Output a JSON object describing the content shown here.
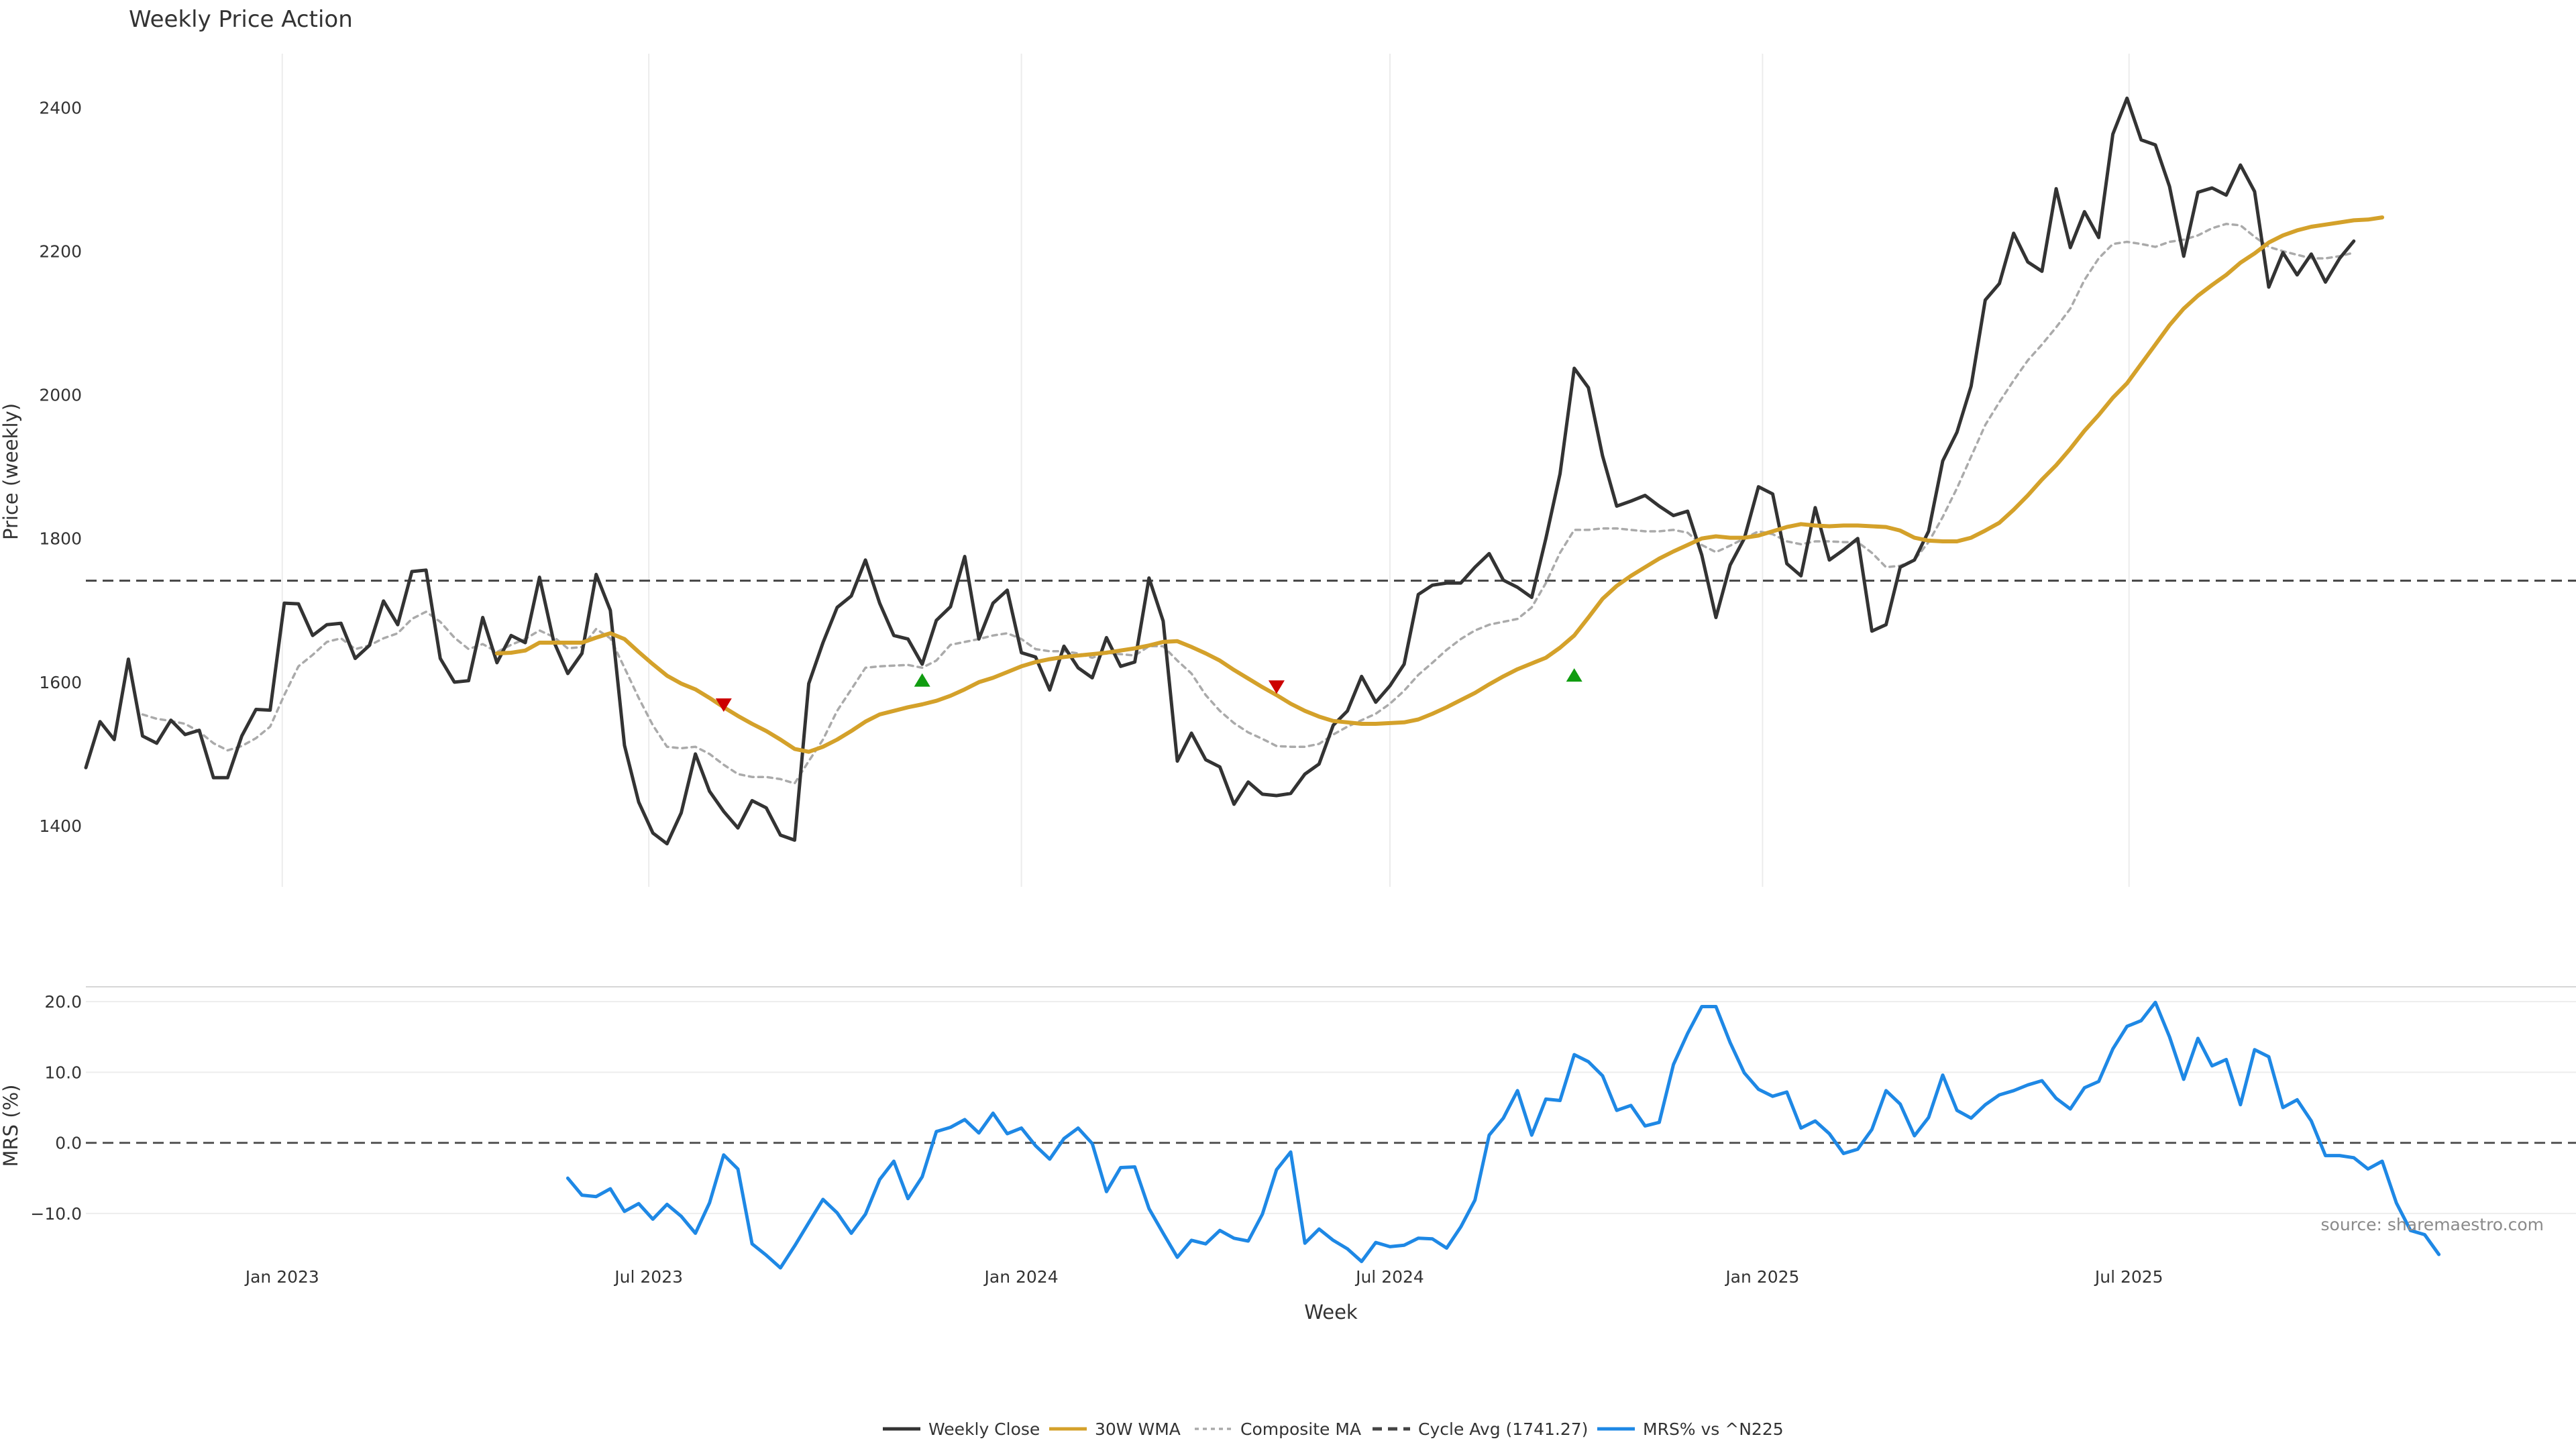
{
  "chart_data": [
    {
      "type": "line",
      "title": "Weekly Price Action",
      "ylabel": "Price (weekly)",
      "xlabel": "Week",
      "ylim": [
        1315,
        2475
      ],
      "yticks": [
        "1400",
        "1600",
        "1800",
        "2000",
        "2200",
        "2400"
      ],
      "x_ticks": [
        "Jan 2023",
        "Jul 2023",
        "Jan 2024",
        "Jul 2024",
        "Jan 2025",
        "Jul 2025"
      ],
      "x_start": "2022-09-26",
      "x_interval_days": 7,
      "grid": "vertical",
      "reference_line": {
        "name": "Cycle Avg (1741.27)",
        "value": 1741.27
      },
      "series": [
        {
          "name": "Weekly Close",
          "color": "#333333",
          "values": [
            1481,
            1545,
            1520,
            1632,
            1525,
            1515,
            1547,
            1527,
            1533,
            1467,
            1467,
            1525,
            1562,
            1561,
            1710,
            1709,
            1665,
            1680,
            1682,
            1633,
            1651,
            1713,
            1680,
            1754,
            1756,
            1633,
            1600,
            1602,
            1690,
            1627,
            1665,
            1655,
            1746,
            1657,
            1612,
            1640,
            1750,
            1700,
            1512,
            1433,
            1390,
            1375,
            1418,
            1500,
            1448,
            1420,
            1397,
            1435,
            1425,
            1387,
            1380,
            1598,
            1655,
            1704,
            1720,
            1770,
            1710,
            1665,
            1660,
            1625,
            1686,
            1705,
            1775,
            1660,
            1710,
            1728,
            1641,
            1635,
            1589,
            1650,
            1620,
            1606,
            1662,
            1622,
            1628,
            1745,
            1685,
            1490,
            1529,
            1492,
            1482,
            1430,
            1461,
            1444,
            1442,
            1445,
            1472,
            1486,
            1540,
            1560,
            1608,
            1572,
            1595,
            1625,
            1722,
            1735,
            1738,
            1738,
            1760,
            1779,
            1742,
            1732,
            1718,
            1800,
            1890,
            2037,
            2010,
            1915,
            1845,
            1852,
            1860,
            1845,
            1832,
            1838,
            1777,
            1690,
            1763,
            1800,
            1872,
            1862,
            1765,
            1748,
            1843,
            1770,
            1784,
            1800,
            1671,
            1680,
            1760,
            1770,
            1810,
            1908,
            1948,
            2012,
            2132,
            2155,
            2225,
            2185,
            2172,
            2287,
            2205,
            2255,
            2219,
            2363,
            2413,
            2355,
            2348,
            2290,
            2193,
            2282,
            2288,
            2278,
            2320,
            2283,
            2150,
            2198,
            2167,
            2196,
            2157,
            2190,
            2214
          ]
        },
        {
          "name": "30W WMA",
          "color": "#D4A12A",
          "values": [
            null,
            null,
            null,
            null,
            null,
            null,
            null,
            null,
            null,
            null,
            null,
            null,
            null,
            null,
            null,
            null,
            null,
            null,
            null,
            null,
            null,
            null,
            null,
            null,
            null,
            null,
            null,
            null,
            null,
            1640,
            1641,
            1644,
            1655,
            1655,
            1655,
            1655,
            1662,
            1668,
            1660,
            1642,
            1625,
            1609,
            1598,
            1590,
            1578,
            1565,
            1553,
            1542,
            1532,
            1520,
            1507,
            1503,
            1510,
            1520,
            1532,
            1545,
            1555,
            1560,
            1565,
            1569,
            1574,
            1581,
            1590,
            1600,
            1606,
            1614,
            1622,
            1628,
            1632,
            1635,
            1637,
            1639,
            1641,
            1644,
            1647,
            1651,
            1656,
            1657,
            1649,
            1640,
            1630,
            1617,
            1605,
            1593,
            1582,
            1570,
            1560,
            1552,
            1546,
            1544,
            1542,
            1542,
            1543,
            1544,
            1548,
            1556,
            1565,
            1575,
            1585,
            1597,
            1608,
            1618,
            1626,
            1634,
            1648,
            1665,
            1690,
            1716,
            1734,
            1748,
            1760,
            1772,
            1782,
            1791,
            1800,
            1803,
            1801,
            1801,
            1804,
            1810,
            1816,
            1820,
            1818,
            1817,
            1818,
            1818,
            1817,
            1816,
            1811,
            1801,
            1797,
            1796,
            1796,
            1801,
            1811,
            1822,
            1840,
            1860,
            1882,
            1902,
            1925,
            1950,
            1972,
            1996,
            2016,
            2043,
            2070,
            2097,
            2120,
            2138,
            2153,
            2167,
            2184,
            2197,
            2212,
            2222,
            2229,
            2234,
            2237,
            2240,
            2243,
            2244,
            2247
          ]
        },
        {
          "name": "Composite MA",
          "color": "#AAAAAA",
          "values": [
            null,
            null,
            null,
            null,
            1555,
            1549,
            1546,
            1542,
            1531,
            1515,
            1505,
            1511,
            1522,
            1538,
            1582,
            1622,
            1638,
            1656,
            1661,
            1646,
            1651,
            1661,
            1668,
            1688,
            1698,
            1684,
            1662,
            1646,
            1653,
            1642,
            1652,
            1660,
            1672,
            1663,
            1647,
            1649,
            1674,
            1661,
            1620,
            1578,
            1540,
            1510,
            1508,
            1510,
            1500,
            1485,
            1472,
            1468,
            1468,
            1465,
            1459,
            1490,
            1520,
            1560,
            1590,
            1620,
            1622,
            1623,
            1624,
            1620,
            1630,
            1652,
            1656,
            1660,
            1665,
            1668,
            1660,
            1646,
            1643,
            1643,
            1640,
            1634,
            1641,
            1639,
            1637,
            1650,
            1650,
            1630,
            1612,
            1582,
            1560,
            1543,
            1530,
            1521,
            1511,
            1510,
            1510,
            1514,
            1527,
            1538,
            1547,
            1556,
            1570,
            1588,
            1610,
            1627,
            1645,
            1660,
            1672,
            1680,
            1684,
            1688,
            1704,
            1738,
            1780,
            1812,
            1812,
            1814,
            1814,
            1812,
            1810,
            1810,
            1812,
            1808,
            1791,
            1781,
            1790,
            1800,
            1810,
            1806,
            1796,
            1792,
            1796,
            1796,
            1795,
            1795,
            1780,
            1760,
            1762,
            1770,
            1795,
            1830,
            1870,
            1914,
            1958,
            1990,
            2020,
            2048,
            2070,
            2094,
            2120,
            2160,
            2190,
            2210,
            2213,
            2210,
            2206,
            2213,
            2216,
            2222,
            2232,
            2238,
            2236,
            2220,
            2206,
            2200,
            2195,
            2190,
            2190,
            2193,
            2198
          ]
        }
      ],
      "signals": [
        {
          "type": "sell",
          "x": "2023-08-07",
          "y": 1568,
          "color": "#CC0000"
        },
        {
          "type": "buy",
          "x": "2023-11-13",
          "y": 1603,
          "color": "#109C10"
        },
        {
          "type": "sell",
          "x": "2024-05-06",
          "y": 1593,
          "color": "#CC0000"
        },
        {
          "type": "buy",
          "x": "2024-09-30",
          "y": 1610,
          "color": "#109C10"
        }
      ]
    },
    {
      "type": "line",
      "ylabel": "MRS (%)",
      "ylim": [
        -17.7,
        22.1
      ],
      "yticks": [
        "20.0",
        "10.0",
        "0.0",
        "−10.0"
      ],
      "reference_line": {
        "value": 0
      },
      "grid": "horizontal",
      "series": [
        {
          "name": "MRS% vs ^N225",
          "color": "#1E88E5",
          "values": [
            null,
            null,
            null,
            null,
            null,
            null,
            null,
            null,
            null,
            null,
            null,
            null,
            null,
            null,
            null,
            null,
            null,
            null,
            null,
            null,
            null,
            null,
            null,
            null,
            null,
            null,
            null,
            null,
            null,
            null,
            null,
            null,
            null,
            null,
            -5,
            -7.4,
            -7.6,
            -6.5,
            -9.7,
            -8.6,
            -10.8,
            -8.7,
            -10.4,
            -12.8,
            -8.5,
            -1.7,
            -3.7,
            -14.3,
            -15.9,
            -17.7,
            -14.6,
            -11.3,
            -8,
            -9.9,
            -12.8,
            -10.1,
            -5.2,
            -2.6,
            -7.9,
            -4.8,
            1.6,
            2.2,
            3.3,
            1.4,
            4.2,
            1.3,
            2.1,
            -0.4,
            -2.3,
            0.6,
            2.1,
            -0.1,
            -6.9,
            -3.5,
            -3.4,
            -9.3,
            -12.8,
            -16.2,
            -13.8,
            -14.3,
            -12.4,
            -13.5,
            -13.9,
            -10.1,
            -3.8,
            -1.3,
            -14.2,
            -12.2,
            -13.8,
            -15,
            -16.8,
            -14.1,
            -14.7,
            -14.5,
            -13.5,
            -13.6,
            -14.9,
            -11.9,
            -8.1,
            1.1,
            3.5,
            7.4,
            1.1,
            6.2,
            6,
            12.5,
            11.5,
            9.5,
            4.6,
            5.3,
            2.4,
            2.9,
            11.1,
            15.5,
            19.3,
            19.3,
            14.2,
            9.9,
            7.6,
            6.6,
            7.2,
            2.1,
            3.1,
            1.3,
            -1.5,
            -0.9,
            1.9,
            7.4,
            5.5,
            1,
            3.6,
            9.6,
            4.6,
            3.5,
            5.4,
            6.8,
            7.4,
            8.2,
            8.8,
            6.3,
            4.8,
            7.8,
            8.7,
            13.3,
            16.5,
            17.3,
            19.9,
            15,
            9,
            14.8,
            10.9,
            11.8,
            5.4,
            13.2,
            12.2,
            5,
            6.1,
            3.1,
            -1.8,
            -1.8,
            -2.1,
            -3.7,
            -2.6,
            -8.5,
            -12.4,
            -13,
            -15.8
          ]
        }
      ]
    }
  ],
  "source_note": "source: sharemaestro.com",
  "legend": {
    "placement": "bottom-center",
    "items": [
      {
        "label": "Weekly Close",
        "color": "#333333",
        "style": "solid"
      },
      {
        "label": "30W WMA",
        "color": "#D4A12A",
        "style": "solid"
      },
      {
        "label": "Composite MA",
        "color": "#AAAAAA",
        "style": "dotted"
      },
      {
        "label": "Cycle Avg (1741.27)",
        "color": "#444444",
        "style": "dashed"
      },
      {
        "label": "MRS% vs ^N225",
        "color": "#1E88E5",
        "style": "solid"
      }
    ]
  }
}
